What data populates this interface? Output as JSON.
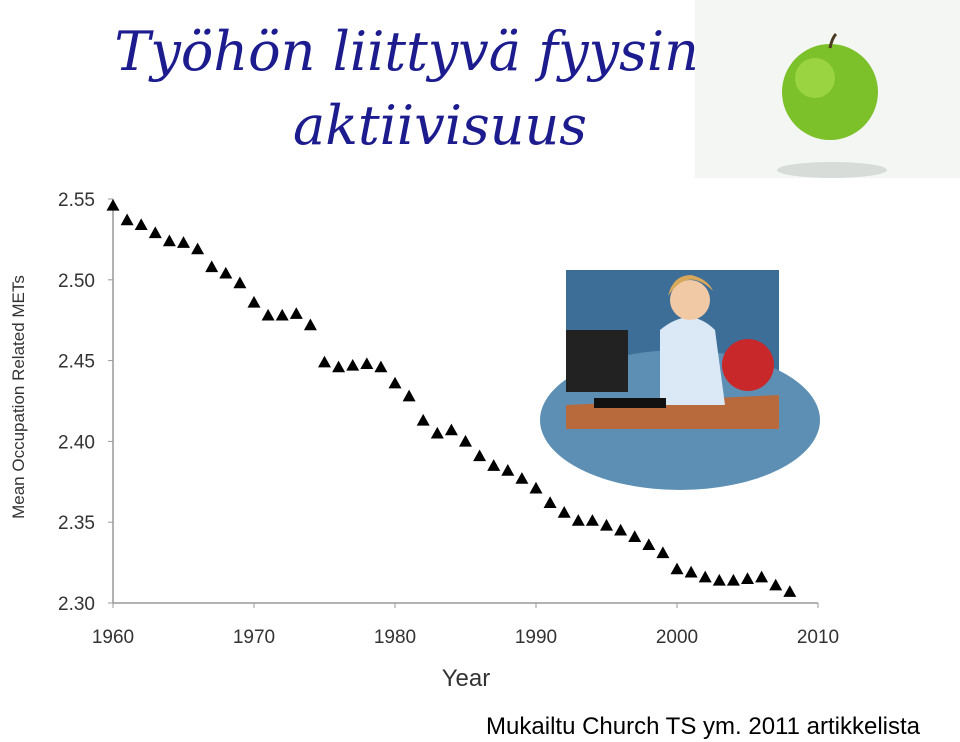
{
  "chart_data": {
    "type": "scatter",
    "title": [
      "Työhön liittyvä fyysinen",
      "aktiivisuus"
    ],
    "x_label": "Year",
    "y_label": "Mean Occupation Related METs",
    "source": "Mukailtu Church TS ym. 2011 artikkelista",
    "marker": "triangle",
    "color": "#000000",
    "x": [
      1960,
      1961,
      1962,
      1963,
      1964,
      1965,
      1966,
      1967,
      1968,
      1969,
      1970,
      1971,
      1972,
      1973,
      1974,
      1975,
      1976,
      1977,
      1978,
      1979,
      1980,
      1981,
      1982,
      1983,
      1984,
      1985,
      1986,
      1987,
      1988,
      1989,
      1990,
      1991,
      1992,
      1993,
      1994,
      1995,
      1996,
      1997,
      1998,
      1999,
      2000,
      2001,
      2002,
      2003,
      2004,
      2005,
      2006,
      2007,
      2008
    ],
    "values": [
      2.546,
      2.537,
      2.534,
      2.529,
      2.524,
      2.523,
      2.519,
      2.508,
      2.504,
      2.498,
      2.486,
      2.478,
      2.478,
      2.479,
      2.472,
      2.449,
      2.446,
      2.447,
      2.448,
      2.446,
      2.436,
      2.428,
      2.413,
      2.405,
      2.407,
      2.4,
      2.391,
      2.385,
      2.382,
      2.377,
      2.371,
      2.362,
      2.356,
      2.351,
      2.351,
      2.348,
      2.345,
      2.341,
      2.336,
      2.331,
      2.321,
      2.319,
      2.316,
      2.314,
      2.314,
      2.315,
      2.316,
      2.311,
      2.307
    ],
    "xlim": [
      1960,
      2010
    ],
    "xticks": [
      1960,
      1970,
      1980,
      1990,
      2000,
      2010
    ],
    "ylim": [
      2.3,
      2.55
    ],
    "yticks": [
      {
        "value": 2.3,
        "label": "2.30"
      },
      2.35,
      {
        "value": 2.4,
        "label": "2.40"
      },
      2.45,
      {
        "value": 2.5,
        "label": "2.50"
      },
      2.55
    ],
    "grid": false
  }
}
